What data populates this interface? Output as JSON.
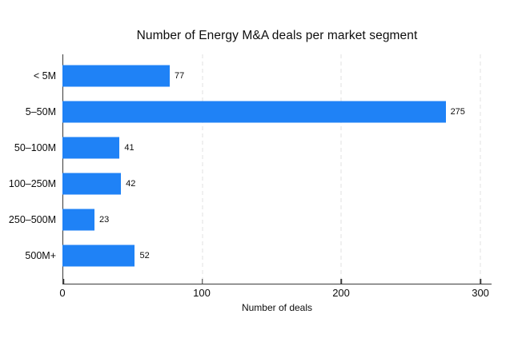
{
  "chart_data": {
    "type": "bar",
    "orientation": "horizontal",
    "title": "Number of Energy M&A deals per market segment",
    "categories": [
      "< 5M",
      "5–50M",
      "50–100M",
      "100–250M",
      "250–500M",
      "500M+"
    ],
    "values": [
      77,
      275,
      41,
      42,
      23,
      52
    ],
    "xlabel": "Number of deals",
    "ylabel": "",
    "xlim": [
      0,
      308
    ],
    "xticks": [
      0,
      100,
      200,
      300
    ],
    "gridlines": [
      100,
      200,
      300
    ],
    "grid": "vertical-dashed",
    "legend": "none",
    "bar_color": "#1f82f6",
    "axis_color": "#3a3a3a",
    "gridline_color": "#e2e2e2",
    "background_color": "#ffffff"
  }
}
